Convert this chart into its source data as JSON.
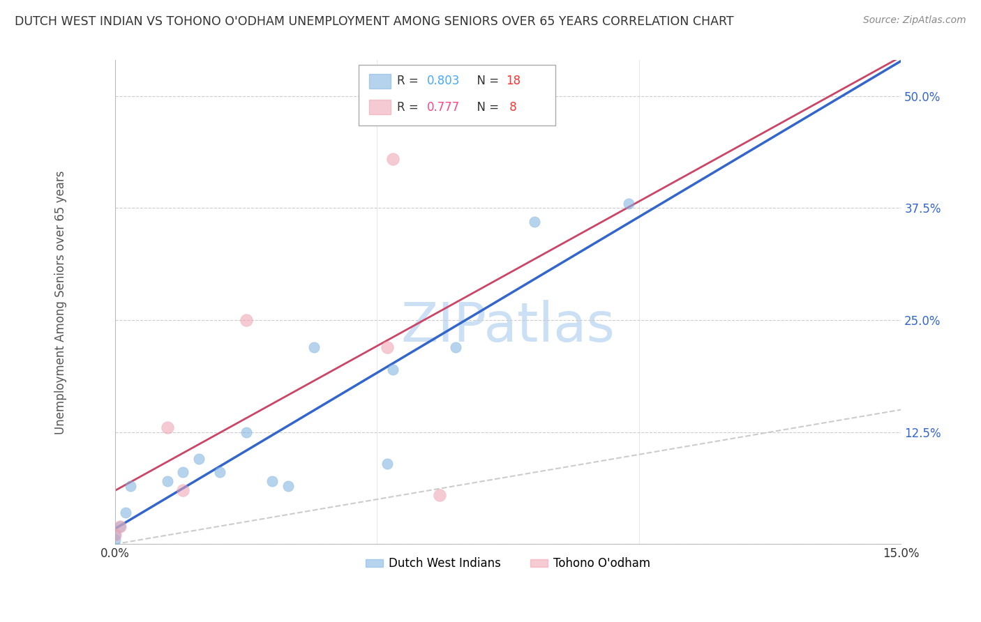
{
  "title": "DUTCH WEST INDIAN VS TOHONO O'ODHAM UNEMPLOYMENT AMONG SENIORS OVER 65 YEARS CORRELATION CHART",
  "source": "Source: ZipAtlas.com",
  "ylabel": "Unemployment Among Seniors over 65 years",
  "xlim": [
    0.0,
    0.15
  ],
  "ylim": [
    0.0,
    0.54
  ],
  "x_ticks": [
    0.0,
    0.05,
    0.1,
    0.15
  ],
  "x_tick_labels": [
    "0.0%",
    "",
    "",
    "15.0%"
  ],
  "y_ticks": [
    0.0,
    0.125,
    0.25,
    0.375,
    0.5
  ],
  "y_tick_labels": [
    "",
    "12.5%",
    "25.0%",
    "37.5%",
    "50.0%"
  ],
  "dutch_x": [
    0.0,
    0.0,
    0.001,
    0.002,
    0.003,
    0.01,
    0.013,
    0.016,
    0.02,
    0.025,
    0.03,
    0.033,
    0.038,
    0.052,
    0.053,
    0.065,
    0.08,
    0.098
  ],
  "dutch_y": [
    0.005,
    0.01,
    0.02,
    0.035,
    0.065,
    0.07,
    0.08,
    0.095,
    0.08,
    0.125,
    0.07,
    0.065,
    0.22,
    0.09,
    0.195,
    0.22,
    0.36,
    0.38
  ],
  "tohono_x": [
    0.0,
    0.001,
    0.01,
    0.013,
    0.025,
    0.052,
    0.053,
    0.062
  ],
  "tohono_y": [
    0.01,
    0.02,
    0.13,
    0.06,
    0.25,
    0.22,
    0.43,
    0.055
  ],
  "dutch_color": "#7ab0e0",
  "tohono_color": "#f0a0b0",
  "dutch_line_color": "#3366cc",
  "tohono_line_color": "#cc4466",
  "diagonal_color": "#cccccc",
  "watermark": "ZIPatlas",
  "watermark_color": "#cce0f5",
  "scatter_size_dutch": 120,
  "scatter_size_tohono": 160,
  "dutch_r": "0.803",
  "dutch_n": "18",
  "tohono_r": "0.777",
  "tohono_n": " 8"
}
